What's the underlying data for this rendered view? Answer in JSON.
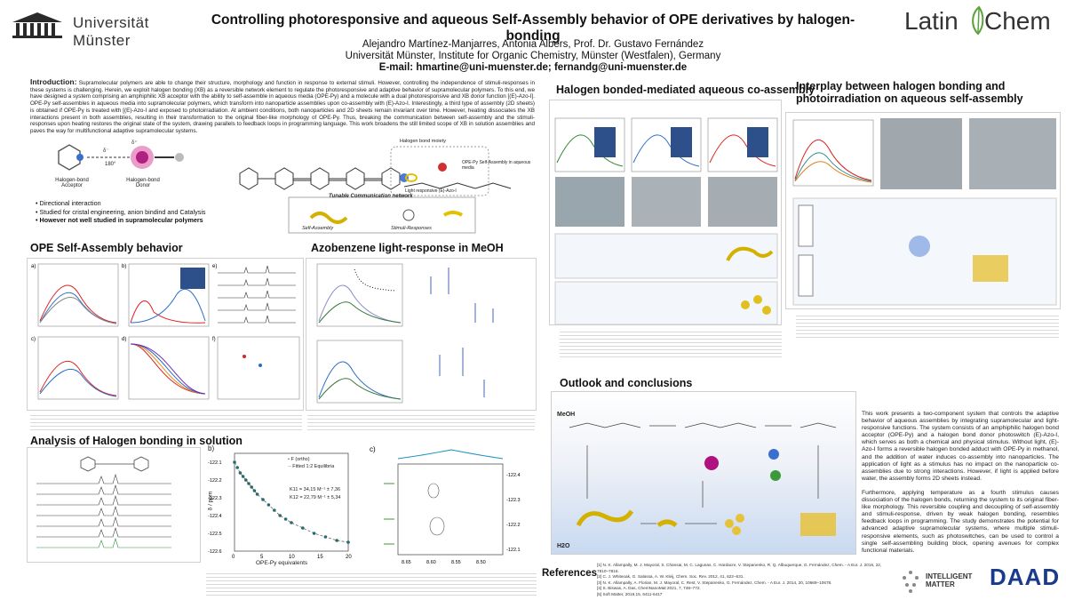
{
  "header": {
    "university_line1": "Universität",
    "university_line2": "Münster",
    "title": "Controlling photoresponsive and aqueous Self-Assembly behavior of OPE derivatives by halogen-bonding",
    "authors": "Alejandro Martínez-Manjarres, Antonia Albers, Prof. Dr. Gustavo Fernández",
    "affiliation": "Universität Münster, Institute for Organic Chemistry, Münster (Westfalen), Germany",
    "email": "E-mail: hmartine@uni-muenster.de; fernandg@uni-muenster.de",
    "partner_logo_left": "Latin",
    "partner_logo_right": "Chem"
  },
  "intro": {
    "heading": "Introduction:",
    "text": "Supramolecular polymers are able to change their structure, morphology and function in response to external stimuli. However, controlling the independence of stimuli-responses in these systems is challenging. Herein, we exploit halogen bonding (XB) as a reversible network element to regulate the photoresponsive and adaptive behavior of supramolecular polymers. To this end, we have designed a system comprising an amphiphilic XB acceptor with the ability to self-assemble in aqueous media (OPE-Py) and a molecule with a dual photoresponsive and XB donor function [(E)-Azo-I]. OPE-Py self-assembles in aqueous media into supramolecular polymers, which transform into nanoparticle assemblies upon co-assembly with (E)-Azo-I. Interestingly, a third type of assembly (2D sheets) is obtained if OPE-Py is treated with [(E)-Azo-I and exposed to photoirradiation. At ambient conditions, both nanoparticles and 2D sheets remain invariant over time. However, heating dissociates the XB interactions present in both assemblies, resulting in their transformation to the original fiber-like morphology of OPE-Py. Thus, breaking the communication between self-assembly and the stimuli-responses upon heating restores the original state of the system, drawing parallels to feedback loops in programming language. This work broadens the still limited scope of XB in solution assemblies and paves the way for multifunctional adaptive supramolecular systems."
  },
  "scheme": {
    "acceptor_label": "Halogen-bond Acceptor",
    "donor_label": "Halogen-bond Donor",
    "angle_label": "180°",
    "moiety_label": "Halogen bond moiety",
    "light_label": "Light responsive (E)-Azo-I",
    "ope_label": "OPE-Py Self-Assembly in aqueous media",
    "network_label": "Tunable Communication network",
    "self_assembly_label": "Self-Assembly",
    "stimuli_label": "Stimuli-Responses",
    "bullets": [
      "Directional interaction",
      "Studied for cristal engineering, anion bindind and Catalysis",
      "However not well studied in supramolecular polymers"
    ]
  },
  "sections": {
    "ope_self_assembly": "OPE Self-Assembly behavior",
    "azobenzene": "Azobenzene light-response in MeOH",
    "halogen_analysis": "Analysis of Halogen bonding in solution",
    "halogen_coassembly": "Halogen bonded-mediated aqueous co-assembly",
    "interplay": "Interplay between halogen bonding and photoirradiation on aqueous self-assembly",
    "outlook": "Outlook and conclusions",
    "references": "References"
  },
  "chart_data": [
    {
      "type": "scatter",
      "title": "",
      "panel": "b)",
      "xlabel": "OPE-Py equivalents",
      "ylabel": "δ / ppm",
      "xlim": [
        0,
        20
      ],
      "ylim": [
        -122.6,
        -122.05
      ],
      "xticks": [
        0,
        5,
        10,
        15,
        20
      ],
      "yticks": [
        -122.1,
        -122.2,
        -122.3,
        -122.4,
        -122.5,
        -122.6
      ],
      "series": [
        {
          "name": "F (ortho)",
          "x": [
            0,
            0.5,
            1,
            1.5,
            2,
            2.5,
            3,
            3.5,
            4,
            5,
            6,
            7,
            8,
            9,
            10,
            12,
            14,
            16,
            18,
            20
          ],
          "y": [
            -122.1,
            -122.13,
            -122.16,
            -122.18,
            -122.2,
            -122.22,
            -122.24,
            -122.26,
            -122.28,
            -122.31,
            -122.34,
            -122.37,
            -122.4,
            -122.42,
            -122.44,
            -122.47,
            -122.5,
            -122.52,
            -122.54,
            -122.55
          ]
        },
        {
          "name": "Fitted 1:2 Equilibria"
        }
      ],
      "annotations": [
        "K11 = 34,15 M⁻¹ ± 7,36",
        "K12 = 22,79 M⁻¹ ± 5,34"
      ]
    }
  ],
  "outlook": {
    "meoh_label": "MeOH",
    "h2o_label": "H2O",
    "paragraph1": "This work presents a two-component system that controls the adaptive behavior of aqueous assemblies by integrating supramolecular and light-responsive functions. The system consists of an amphiphilic halogen bond acceptor (OPE-Py) and a halogen bond donor photoswitch (E)-Azo-I, which serves as both a chemical and physical stimulus. Without light, (E)-Azo-I forms a reversible halogen bonded adduct with OPE-Py in methanol, and the addition of water induces co-assembly into nanoparticles. The application of light as a stimulus has no impact on the nanoparticle co-assemblies due to strong interactions. However, if light is applied before water, the assembly forms 2D sheets instead.",
    "paragraph2": "Furthermore, applying temperature as a fourth stimulus causes dissociation of the halogen bonds, returning the system to its original fiber-like morphology. This reversible coupling and decoupling of self-assembly and stimuli-response, driven by weak halogen bonding, resembles feedback loops in programming. The study demonstrates the potential for advanced adaptive supramolecular systems, where multiple stimuli-responsive elements, such as photoswitches, can be used to control a single self-assembling building block, opening avenues for complex functional materials."
  },
  "references": [
    "[1] N. K. Allampally, M. J. Mayoral, S. Chansai, M. C. Lagunas, C. Hardacre, V. Stepanenko, R. Q. Albuquerque, G. Fernández, Chem. - A Eur. J. 2016, 22, 7810–7816.",
    "[2] C. J. Whiteoak, G. Salassa, A. W. Kleij, Chem. Soc. Rev. 2012, 41, 622–631.",
    "[3] N. K. Allampally, A. Florian, M. J. Mayoral, C. Rest, V. Stepanenko, G. Fernández, Chem. - A Eur. J. 2014, 20, 10669–10678.",
    "[4] S. Biswas, A. Das, ChemNanoMat 2021, 7, 748–772.",
    "[5] Soft Matter, 2019,15, 6411-6417"
  ],
  "footer_logos": {
    "intelligent_matter": "INTELLIGENT MATTER",
    "daad": "DAAD"
  }
}
